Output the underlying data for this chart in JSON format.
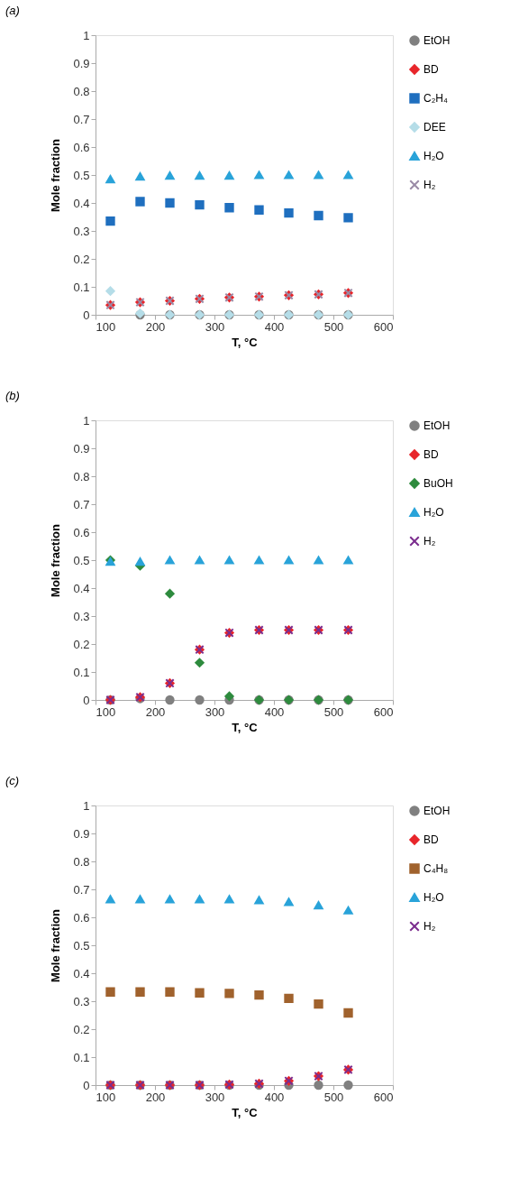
{
  "chart_data": [
    {
      "type": "scatter",
      "title": "(a)",
      "xlabel": "T, °C",
      "ylabel": "Mole fraction",
      "x": [
        125,
        175,
        225,
        275,
        325,
        375,
        425,
        475,
        525
      ],
      "xlim": [
        100,
        600
      ],
      "xticks": [
        100,
        200,
        300,
        400,
        500,
        600
      ],
      "ylim": [
        0,
        1
      ],
      "yticks": [
        0,
        0.1,
        0.2,
        0.3,
        0.4,
        0.5,
        0.6,
        0.7,
        0.8,
        0.9,
        1
      ],
      "grid": false,
      "legend": "right",
      "series": [
        {
          "name": "EtOH",
          "color": "#808080",
          "marker": "circle",
          "values": [
            null,
            0,
            0,
            0,
            0,
            0,
            0,
            0,
            0
          ]
        },
        {
          "name": "BD",
          "color": "#e8262b",
          "marker": "diamond",
          "values": [
            0.035,
            0.045,
            0.05,
            0.057,
            0.062,
            0.065,
            0.07,
            0.073,
            0.078
          ]
        },
        {
          "name": "C₂H₄",
          "color": "#1f6fbf",
          "marker": "square",
          "values": [
            0.335,
            0.405,
            0.4,
            0.393,
            0.383,
            0.375,
            0.364,
            0.355,
            0.347
          ]
        },
        {
          "name": "DEE",
          "color": "#b5dde8",
          "marker": "diamond",
          "values": [
            0.085,
            0.005,
            0,
            0,
            0,
            0,
            0,
            0,
            0
          ]
        },
        {
          "name": "H₂O",
          "color": "#29a3d9",
          "marker": "triangle",
          "values": [
            0.485,
            0.495,
            0.498,
            0.498,
            0.498,
            0.5,
            0.5,
            0.5,
            0.5
          ]
        },
        {
          "name": "H₂",
          "color": "#9a8aa6",
          "marker": "cross",
          "values": [
            0.035,
            0.045,
            0.05,
            0.057,
            0.062,
            0.065,
            0.07,
            0.073,
            0.078
          ]
        }
      ]
    },
    {
      "type": "scatter",
      "title": "(b)",
      "xlabel": "T, °C",
      "ylabel": "Mole fraction",
      "x": [
        125,
        175,
        225,
        275,
        325,
        375,
        425,
        475,
        525
      ],
      "xlim": [
        100,
        600
      ],
      "xticks": [
        100,
        200,
        300,
        400,
        500,
        600
      ],
      "ylim": [
        0,
        1
      ],
      "yticks": [
        0,
        0.1,
        0.2,
        0.3,
        0.4,
        0.5,
        0.6,
        0.7,
        0.8,
        0.9,
        1
      ],
      "grid": false,
      "legend": "right",
      "series": [
        {
          "name": "EtOH",
          "color": "#808080",
          "marker": "circle",
          "values": [
            0,
            0.005,
            0,
            0,
            0,
            0,
            0,
            0,
            0
          ]
        },
        {
          "name": "BD",
          "color": "#e8262b",
          "marker": "diamond",
          "values": [
            0,
            0.01,
            0.06,
            0.18,
            0.24,
            0.25,
            0.25,
            0.25,
            0.25
          ]
        },
        {
          "name": "BuOH",
          "color": "#2e8b3e",
          "marker": "diamond",
          "values": [
            0.5,
            0.48,
            0.38,
            0.133,
            0.013,
            0,
            0,
            0,
            0
          ]
        },
        {
          "name": "H₂O",
          "color": "#29a3d9",
          "marker": "triangle",
          "values": [
            0.495,
            0.495,
            0.5,
            0.5,
            0.5,
            0.5,
            0.5,
            0.5,
            0.5
          ]
        },
        {
          "name": "H₂",
          "color": "#7b2d8e",
          "marker": "cross",
          "values": [
            0,
            0.01,
            0.06,
            0.18,
            0.24,
            0.25,
            0.25,
            0.25,
            0.25
          ]
        }
      ]
    },
    {
      "type": "scatter",
      "title": "(c)",
      "xlabel": "T, °C",
      "ylabel": "Mole fraction",
      "x": [
        125,
        175,
        225,
        275,
        325,
        375,
        425,
        475,
        525
      ],
      "xlim": [
        100,
        600
      ],
      "xticks": [
        100,
        200,
        300,
        400,
        500,
        600
      ],
      "ylim": [
        0,
        1
      ],
      "yticks": [
        0,
        0.1,
        0.2,
        0.3,
        0.4,
        0.5,
        0.6,
        0.7,
        0.8,
        0.9,
        1
      ],
      "grid": false,
      "legend": "right",
      "series": [
        {
          "name": "EtOH",
          "color": "#808080",
          "marker": "circle",
          "values": [
            0,
            0,
            0,
            0,
            0,
            0,
            0,
            0,
            0
          ]
        },
        {
          "name": "BD",
          "color": "#e8262b",
          "marker": "diamond",
          "values": [
            0,
            0,
            0,
            0,
            0.002,
            0.005,
            0.015,
            0.032,
            0.055
          ]
        },
        {
          "name": "C₄H₈",
          "color": "#a0622d",
          "marker": "square",
          "values": [
            0.333,
            0.333,
            0.333,
            0.33,
            0.328,
            0.322,
            0.31,
            0.29,
            0.258
          ]
        },
        {
          "name": "H₂O",
          "color": "#29a3d9",
          "marker": "triangle",
          "values": [
            0.665,
            0.665,
            0.665,
            0.665,
            0.665,
            0.662,
            0.655,
            0.643,
            0.625
          ]
        },
        {
          "name": "H₂",
          "color": "#7b2d8e",
          "marker": "cross",
          "values": [
            0,
            0,
            0,
            0,
            0.002,
            0.005,
            0.015,
            0.032,
            0.055
          ]
        }
      ]
    }
  ]
}
